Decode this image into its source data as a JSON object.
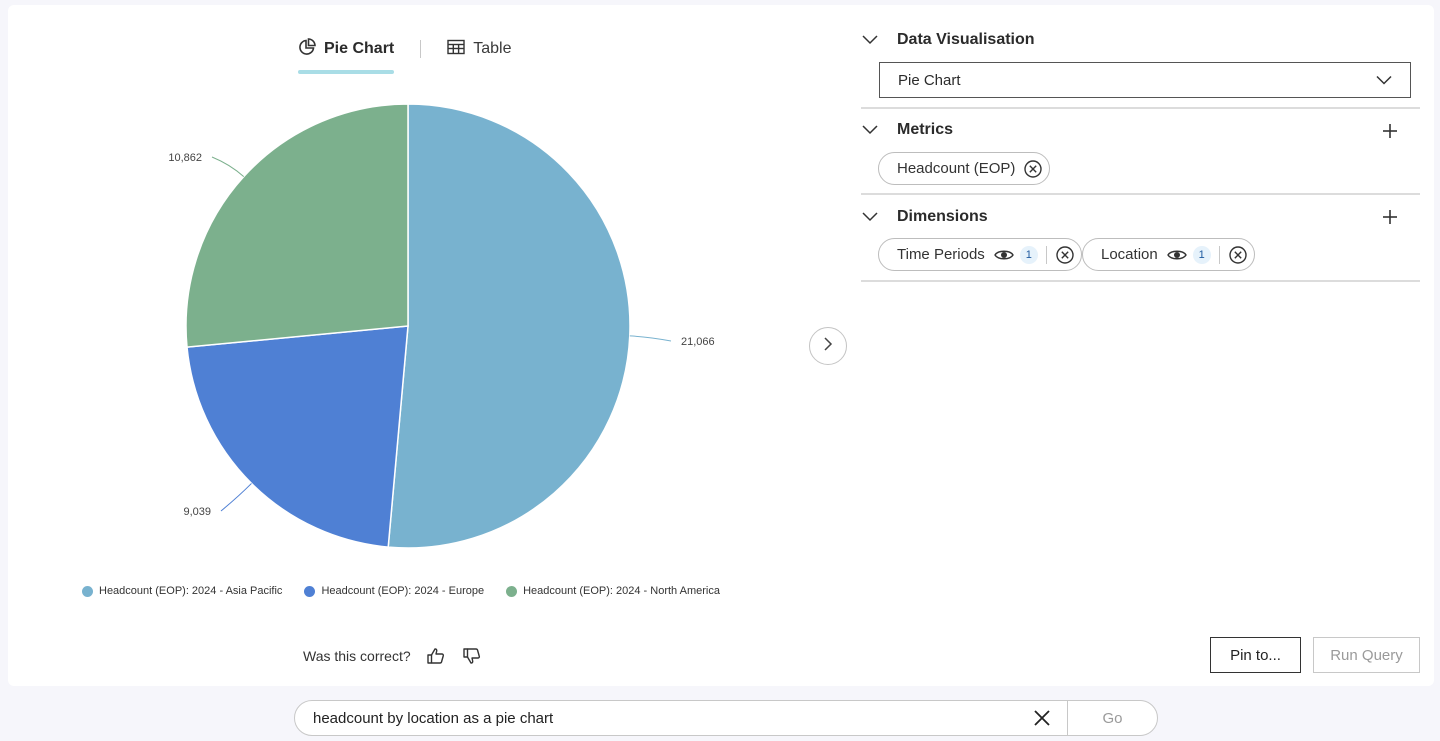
{
  "tabs": {
    "pie_label": "Pie Chart",
    "table_label": "Table"
  },
  "chart_data": {
    "type": "pie",
    "categories": [
      "Headcount (EOP): 2024 - Asia Pacific",
      "Headcount (EOP): 2024 - Europe",
      "Headcount (EOP): 2024 - North America"
    ],
    "values": [
      21066,
      9039,
      10862
    ],
    "value_labels": [
      "21,066",
      "9,039",
      "10,862"
    ],
    "colors": [
      "#78b2cf",
      "#4f80d4",
      "#7cb08d"
    ],
    "legend_position": "bottom"
  },
  "legend": [
    {
      "label": "Headcount (EOP): 2024 - Asia Pacific",
      "color": "#78b2cf"
    },
    {
      "label": "Headcount (EOP): 2024 - Europe",
      "color": "#4f80d4"
    },
    {
      "label": "Headcount (EOP): 2024 - North America",
      "color": "#7cb08d"
    }
  ],
  "feedback": {
    "question": "Was this correct?"
  },
  "panel": {
    "visualisation": {
      "title": "Data Visualisation",
      "selected": "Pie Chart"
    },
    "metrics": {
      "title": "Metrics",
      "chips": [
        "Headcount (EOP)"
      ]
    },
    "dimensions": {
      "title": "Dimensions",
      "chips": [
        {
          "label": "Time Periods",
          "count": "1"
        },
        {
          "label": "Location",
          "count": "1"
        }
      ]
    }
  },
  "buttons": {
    "pin": "Pin to...",
    "run": "Run Query"
  },
  "search": {
    "value": "headcount by location as a pie chart",
    "go": "Go"
  }
}
